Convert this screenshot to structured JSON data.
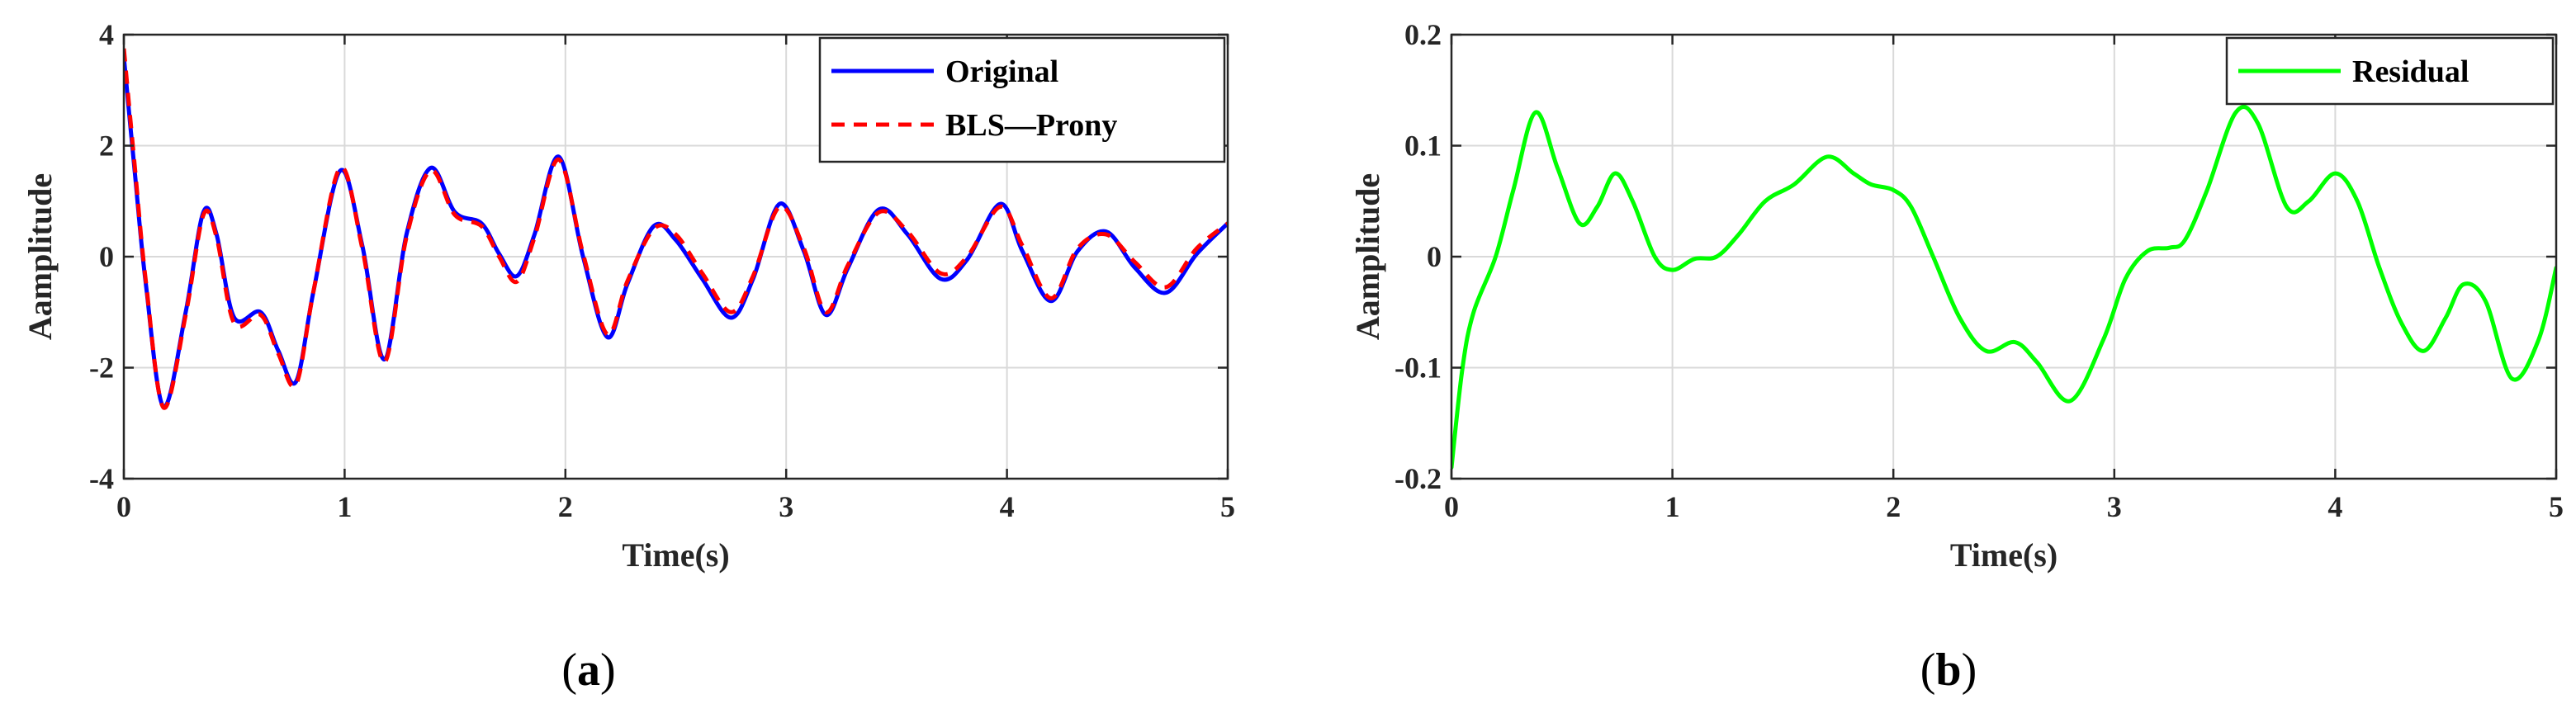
{
  "chart_data": [
    {
      "type": "line",
      "caption_letter": "a",
      "xlabel": "Time(s)",
      "ylabel": "Aamplitude",
      "xlim": [
        0,
        5
      ],
      "ylim": [
        -4,
        4
      ],
      "xticks": [
        "0",
        "1",
        "2",
        "3",
        "4",
        "5"
      ],
      "yticks": [
        "-4",
        "-2",
        "0",
        "2",
        "4"
      ],
      "grid": true,
      "legend_position": "top-right",
      "series": [
        {
          "name": "Original",
          "color": "#0000ff",
          "style": "solid",
          "x": [
            0,
            0.05,
            0.1,
            0.18,
            0.28,
            0.36,
            0.42,
            0.5,
            0.62,
            0.7,
            0.78,
            0.86,
            0.98,
            1.08,
            1.18,
            1.28,
            1.39,
            1.5,
            1.62,
            1.7,
            1.78,
            1.86,
            1.97,
            2.08,
            2.19,
            2.28,
            2.4,
            2.5,
            2.62,
            2.75,
            2.85,
            2.97,
            3.08,
            3.18,
            3.28,
            3.42,
            3.55,
            3.7,
            3.82,
            3.97,
            4.07,
            4.2,
            4.32,
            4.45,
            4.58,
            4.72,
            4.86,
            5.0
          ],
          "y": [
            3.6,
            1.5,
            -0.5,
            -2.7,
            -1.0,
            0.8,
            0.4,
            -1.1,
            -1.0,
            -1.7,
            -2.25,
            -0.6,
            1.55,
            0.2,
            -1.85,
            0.4,
            1.6,
            0.8,
            0.6,
            0.05,
            -0.35,
            0.4,
            1.8,
            0.0,
            -1.45,
            -0.5,
            0.55,
            0.3,
            -0.4,
            -1.1,
            -0.4,
            0.95,
            0.1,
            -1.05,
            -0.2,
            0.85,
            0.4,
            -0.4,
            -0.05,
            0.95,
            0.1,
            -0.8,
            0.1,
            0.45,
            -0.2,
            -0.65,
            0.05,
            0.6
          ]
        },
        {
          "name": "BLS—Prony",
          "color": "#ff0000",
          "style": "dashed",
          "x": [
            0,
            0.05,
            0.1,
            0.18,
            0.28,
            0.36,
            0.42,
            0.5,
            0.62,
            0.7,
            0.78,
            0.86,
            0.98,
            1.08,
            1.18,
            1.28,
            1.39,
            1.5,
            1.62,
            1.7,
            1.78,
            1.86,
            1.97,
            2.08,
            2.19,
            2.28,
            2.4,
            2.5,
            2.62,
            2.75,
            2.85,
            2.97,
            3.08,
            3.18,
            3.28,
            3.42,
            3.55,
            3.7,
            3.82,
            3.97,
            4.07,
            4.2,
            4.32,
            4.45,
            4.58,
            4.72,
            4.86,
            5.0
          ],
          "y": [
            3.75,
            1.6,
            -0.45,
            -2.72,
            -1.05,
            0.75,
            0.35,
            -1.2,
            -1.05,
            -1.75,
            -2.3,
            -0.6,
            1.6,
            0.15,
            -1.9,
            0.35,
            1.55,
            0.75,
            0.55,
            0.0,
            -0.45,
            0.35,
            1.75,
            0.05,
            -1.4,
            -0.45,
            0.5,
            0.4,
            -0.3,
            -1.0,
            -0.35,
            0.9,
            0.15,
            -1.0,
            -0.15,
            0.8,
            0.45,
            -0.3,
            0.0,
            0.9,
            0.2,
            -0.75,
            0.15,
            0.4,
            -0.1,
            -0.55,
            0.15,
            0.6
          ]
        }
      ]
    },
    {
      "type": "line",
      "caption_letter": "b",
      "xlabel": "Time(s)",
      "ylabel": "Aamplitude",
      "xlim": [
        0,
        5
      ],
      "ylim": [
        -0.2,
        0.2
      ],
      "xticks": [
        "0",
        "1",
        "2",
        "3",
        "4",
        "5"
      ],
      "yticks": [
        "-0.2",
        "-0.1",
        "0",
        "0.1",
        "0.2"
      ],
      "grid": true,
      "legend_position": "top-right",
      "series": [
        {
          "name": "Residual",
          "color": "#00ff00",
          "style": "solid",
          "x": [
            0,
            0.05,
            0.1,
            0.2,
            0.28,
            0.38,
            0.48,
            0.58,
            0.66,
            0.74,
            0.82,
            0.92,
            1.0,
            1.1,
            1.2,
            1.3,
            1.42,
            1.55,
            1.7,
            1.82,
            1.9,
            2.0,
            2.08,
            2.18,
            2.3,
            2.42,
            2.55,
            2.65,
            2.8,
            2.95,
            3.05,
            3.15,
            3.25,
            3.32,
            3.42,
            3.55,
            3.65,
            3.78,
            3.88,
            4.0,
            4.1,
            4.2,
            4.3,
            4.4,
            4.5,
            4.58,
            4.68,
            4.8,
            4.92,
            5.0
          ],
          "y": [
            -0.19,
            -0.1,
            -0.05,
            0.0,
            0.06,
            0.13,
            0.08,
            0.03,
            0.045,
            0.075,
            0.05,
            0.0,
            -0.012,
            -0.002,
            0.0,
            0.02,
            0.05,
            0.065,
            0.09,
            0.075,
            0.065,
            0.06,
            0.045,
            0.0,
            -0.055,
            -0.085,
            -0.077,
            -0.095,
            -0.13,
            -0.075,
            -0.02,
            0.005,
            0.008,
            0.015,
            0.06,
            0.13,
            0.12,
            0.045,
            0.05,
            0.075,
            0.05,
            -0.01,
            -0.06,
            -0.085,
            -0.055,
            -0.025,
            -0.04,
            -0.11,
            -0.075,
            -0.01
          ]
        }
      ]
    }
  ]
}
